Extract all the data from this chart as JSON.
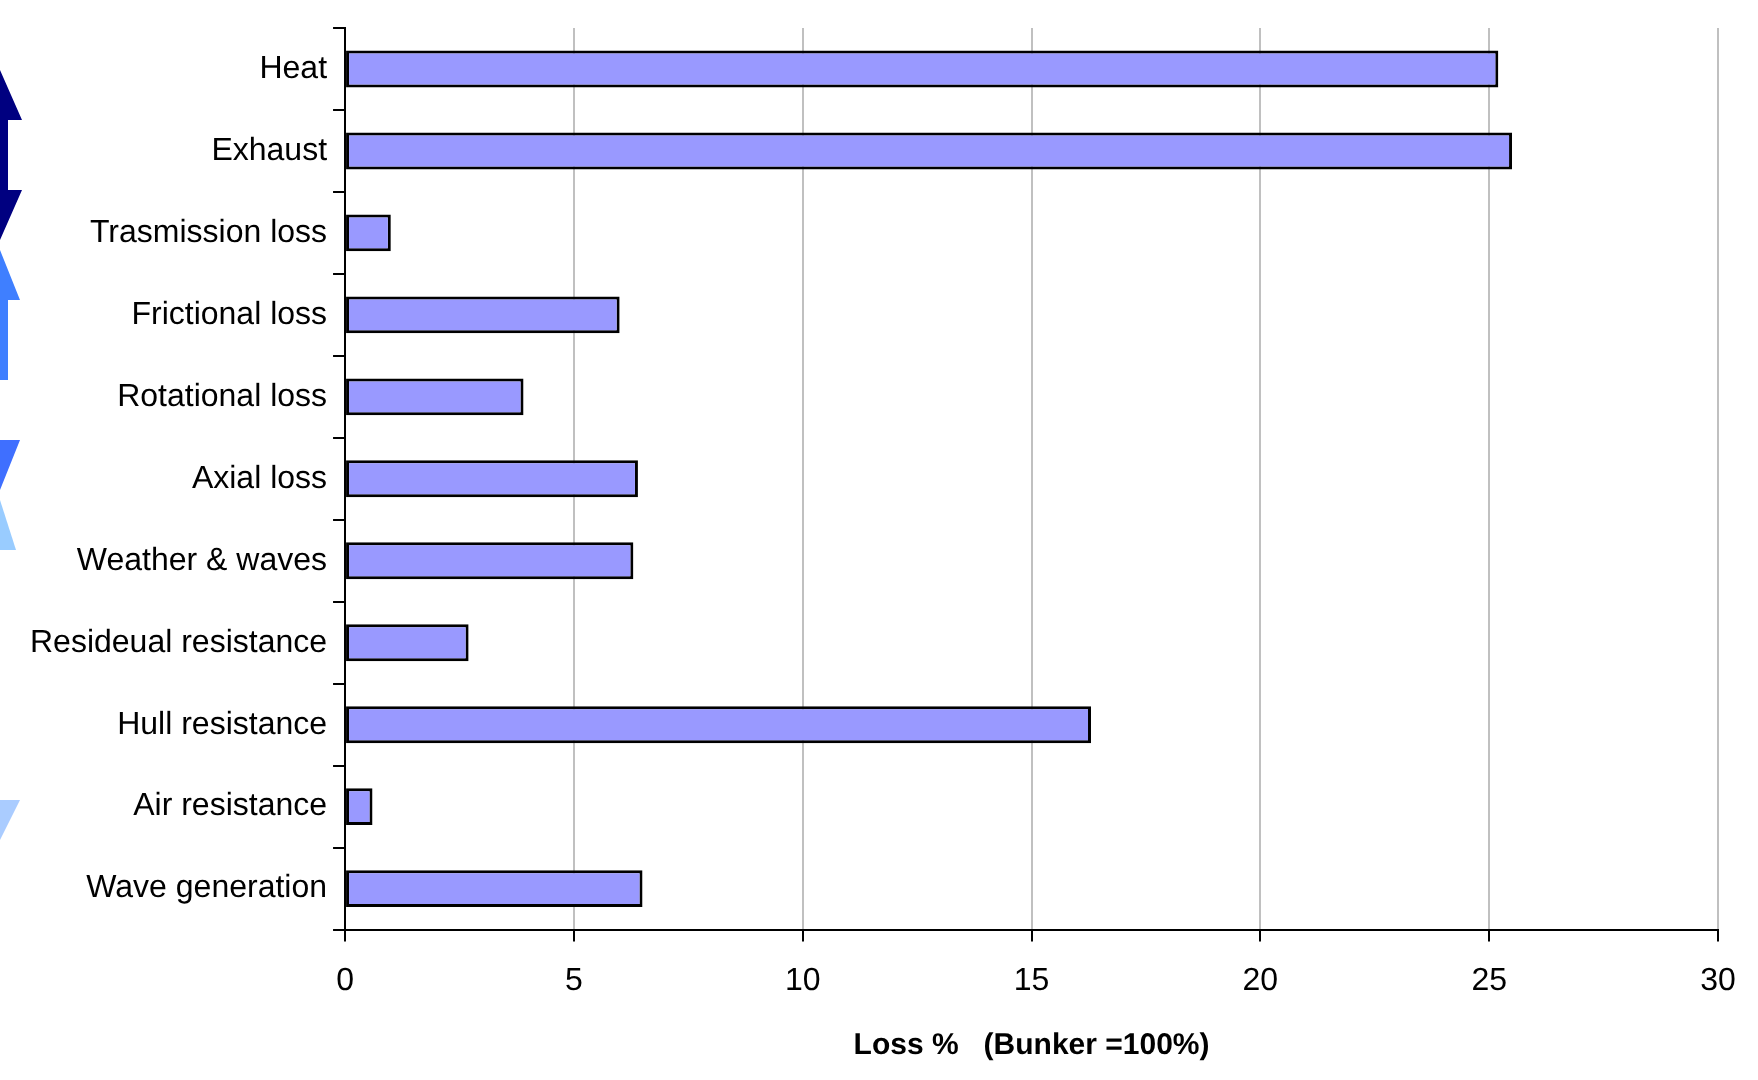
{
  "chart_data": {
    "type": "bar",
    "orientation": "horizontal",
    "xlabel": "Loss %   (Bunker =100%)",
    "categories": [
      "Heat",
      "Exhaust",
      "Trasmission loss",
      "Frictional loss",
      "Rotational loss",
      "Axial loss",
      "Weather & waves",
      "Resideual resistance",
      "Hull resistance",
      "Air resistance",
      "Wave generation"
    ],
    "values": [
      25.2,
      25.5,
      1.0,
      6.0,
      3.9,
      6.4,
      6.3,
      2.7,
      16.3,
      0.6,
      6.5
    ],
    "color": "#9999ff",
    "xlim": [
      0,
      30
    ],
    "xticks": [
      0,
      5,
      10,
      15,
      20,
      25,
      30
    ],
    "grid": "x",
    "legend": false
  }
}
